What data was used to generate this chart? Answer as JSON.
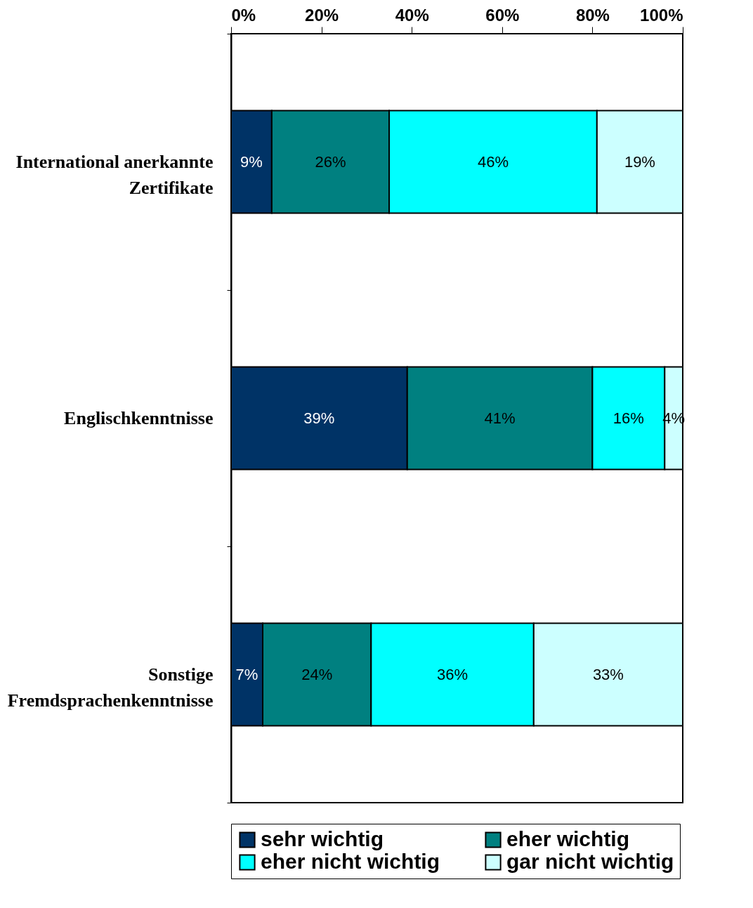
{
  "chart_data": {
    "type": "bar",
    "orientation": "horizontal",
    "stacked": true,
    "categories": [
      "International anerkannte\nZertifikate",
      "Englischkenntnisse",
      "Sonstige\nFremdsprachenkenntnisse"
    ],
    "series": [
      {
        "name": "sehr wichtig",
        "color": "#003366",
        "values": [
          9,
          39,
          7
        ]
      },
      {
        "name": "eher wichtig",
        "color": "#008080",
        "values": [
          26,
          41,
          24
        ]
      },
      {
        "name": "eher nicht wichtig",
        "color": "#00ffff",
        "values": [
          46,
          16,
          36
        ]
      },
      {
        "name": "gar nicht wichtig",
        "color": "#ccffff",
        "values": [
          19,
          4,
          33
        ]
      }
    ],
    "value_labels": [
      [
        "9%",
        "39%",
        "7%"
      ],
      [
        "26%",
        "41%",
        "24%"
      ],
      [
        "46%",
        "16%",
        "36%"
      ],
      [
        "19%",
        "4%",
        "33%"
      ]
    ],
    "xlim": [
      0,
      100
    ],
    "xticks": [
      {
        "value": 0,
        "label": "0%"
      },
      {
        "value": 20,
        "label": "20%"
      },
      {
        "value": 40,
        "label": "40%"
      },
      {
        "value": 60,
        "label": "60%"
      },
      {
        "value": 80,
        "label": "80%"
      },
      {
        "value": 100,
        "label": "100%"
      }
    ],
    "grid": false,
    "legend": "bottom"
  }
}
